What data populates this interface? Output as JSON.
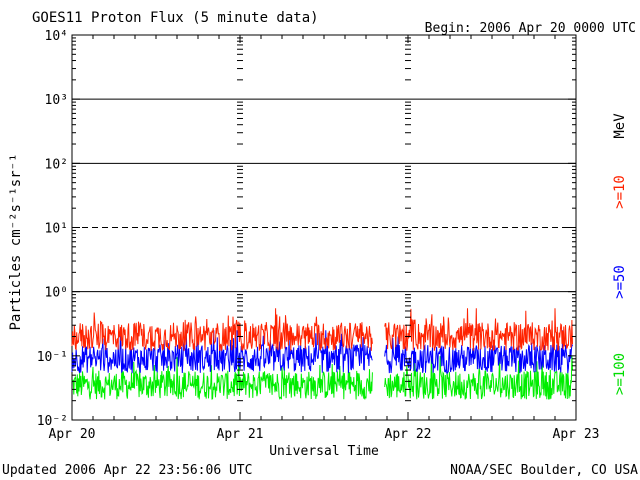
{
  "header": {
    "title": "GOES11 Proton Flux (5 minute data)",
    "begin": "Begin: 2006 Apr 20 0000 UTC"
  },
  "footer": {
    "updated": "Updated 2006 Apr 22 23:56:06 UTC",
    "source": "NOAA/SEC Boulder, CO USA"
  },
  "chart_data": {
    "type": "line",
    "title": "GOES11 Proton Flux (5 minute data)",
    "xlabel": "Universal Time",
    "ylabel": "Particles cm⁻²s⁻¹sr⁻¹",
    "y_scale": "log",
    "ylim": [
      0.01,
      10000
    ],
    "y_ticks": [
      {
        "label": "10⁻²",
        "value": 0.01
      },
      {
        "label": "10⁻¹",
        "value": 0.1
      },
      {
        "label": "10⁰",
        "value": 1
      },
      {
        "label": "10¹",
        "value": 10
      },
      {
        "label": "10²",
        "value": 100
      },
      {
        "label": "10³",
        "value": 1000
      },
      {
        "label": "10⁴",
        "value": 10000
      }
    ],
    "x_ticks": [
      {
        "label": "Apr 20",
        "day": 0
      },
      {
        "label": "Apr 21",
        "day": 1
      },
      {
        "label": "Apr 22",
        "day": 2
      },
      {
        "label": "Apr 23",
        "day": 3
      }
    ],
    "xlim_days": [
      0,
      3
    ],
    "threshold_lines": [
      {
        "value": 1,
        "style": "solid"
      },
      {
        "value": 10,
        "style": "dashed"
      },
      {
        "value": 100,
        "style": "solid"
      },
      {
        "value": 1000,
        "style": "solid"
      }
    ],
    "data_gaps_days": [
      [
        1.79,
        1.86
      ]
    ],
    "data_end_day": 2.98,
    "grid": false,
    "legend_unit": "MeV",
    "series": [
      {
        "name": ">=10",
        "color": "#ff2200",
        "typical": 0.2,
        "min": 0.08,
        "max": 0.55
      },
      {
        "name": ">=50",
        "color": "#0000ff",
        "typical": 0.09,
        "min": 0.045,
        "max": 0.25
      },
      {
        "name": ">=100",
        "color": "#00ee00",
        "typical": 0.035,
        "min": 0.018,
        "max": 0.1
      }
    ]
  }
}
